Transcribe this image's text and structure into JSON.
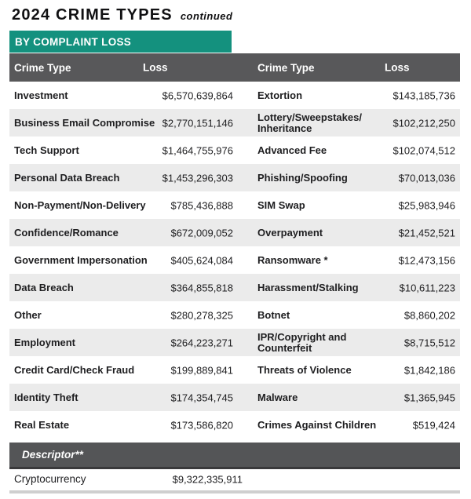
{
  "page": {
    "title": "2024 CRIME TYPES",
    "title_suffix": "continued"
  },
  "section": {
    "banner_label": "BY COMPLAINT LOSS",
    "banner_color": "#14917E",
    "header_color": "#58585A",
    "row_alt_color": "#EBEBEB"
  },
  "table": {
    "headers": {
      "crime_type": "Crime Type",
      "loss": "Loss"
    },
    "left_rows": [
      {
        "label": "Investment",
        "loss": "$6,570,639,864"
      },
      {
        "label": "Business Email Compromise",
        "loss": "$2,770,151,146"
      },
      {
        "label": "Tech Support",
        "loss": "$1,464,755,976"
      },
      {
        "label": "Personal Data Breach",
        "loss": "$1,453,296,303"
      },
      {
        "label": "Non-Payment/Non-Delivery",
        "loss": "$785,436,888"
      },
      {
        "label": "Confidence/Romance",
        "loss": "$672,009,052"
      },
      {
        "label": "Government Impersonation",
        "loss": "$405,624,084"
      },
      {
        "label": "Data Breach",
        "loss": "$364,855,818"
      },
      {
        "label": "Other",
        "loss": "$280,278,325"
      },
      {
        "label": "Employment",
        "loss": "$264,223,271"
      },
      {
        "label": "Credit Card/Check Fraud",
        "loss": "$199,889,841"
      },
      {
        "label": "Identity Theft",
        "loss": "$174,354,745"
      },
      {
        "label": "Real Estate",
        "loss": "$173,586,820"
      }
    ],
    "right_rows": [
      {
        "label": "Extortion",
        "loss": "$143,185,736"
      },
      {
        "label": "Lottery/Sweepstakes/\nInheritance",
        "loss": "$102,212,250"
      },
      {
        "label": "Advanced Fee",
        "loss": "$102,074,512"
      },
      {
        "label": "Phishing/Spoofing",
        "loss": "$70,013,036"
      },
      {
        "label": "SIM Swap",
        "loss": "$25,983,946"
      },
      {
        "label": "Overpayment",
        "loss": "$21,452,521"
      },
      {
        "label": "Ransomware *",
        "loss": "$12,473,156"
      },
      {
        "label": "Harassment/Stalking",
        "loss": "$10,611,223"
      },
      {
        "label": "Botnet",
        "loss": "$8,860,202"
      },
      {
        "label": "IPR/Copyright and\nCounterfeit",
        "loss": "$8,715,512"
      },
      {
        "label": "Threats of Violence",
        "loss": "$1,842,186"
      },
      {
        "label": "Malware",
        "loss": "$1,365,945"
      },
      {
        "label": "Crimes Against Children",
        "loss": "$519,424"
      }
    ],
    "descriptor": {
      "label": "Descriptor**"
    },
    "descriptor_rows": [
      {
        "label": "Cryptocurrency",
        "loss": "$9,322,335,911"
      }
    ]
  }
}
